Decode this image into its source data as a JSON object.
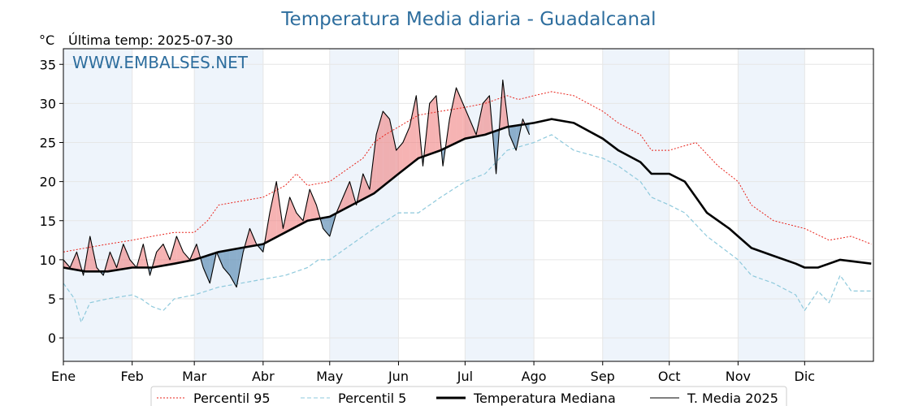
{
  "header": {
    "title": "Temperatura Media diaria - Guadalcanal",
    "unit": "°C",
    "last_temp": "Última temp: 2025-07-30",
    "watermark": "WWW.EMBALSES.NET"
  },
  "colors": {
    "title": "#2e6e9e",
    "p95": "#e8231b",
    "p5": "#8ec9dc",
    "median": "#000000",
    "current": "#000000",
    "above_fill": "#f08080",
    "below_fill": "#4a7fac",
    "month_band": "#eef4fb"
  },
  "chart_data": {
    "type": "line",
    "title": "Temperatura Media diaria - Guadalcanal",
    "ylabel": "°C",
    "xlabel": "",
    "xlim": [
      0,
      365
    ],
    "ylim": [
      -3,
      37
    ],
    "yticks": [
      0,
      5,
      10,
      15,
      20,
      25,
      30,
      35
    ],
    "month_labels": [
      "Ene",
      "Feb",
      "Mar",
      "Abr",
      "May",
      "Jun",
      "Jul",
      "Ago",
      "Sep",
      "Oct",
      "Nov",
      "Dic"
    ],
    "month_start_days": [
      0,
      31,
      59,
      90,
      120,
      151,
      181,
      212,
      243,
      273,
      304,
      334
    ],
    "grid": true,
    "legend_position": "bottom",
    "series": [
      {
        "name": "Percentil 95",
        "style": "red-dotted",
        "x": [
          0,
          10,
          20,
          31,
          40,
          50,
          59,
          65,
          70,
          80,
          90,
          100,
          105,
          110,
          120,
          130,
          135,
          140,
          145,
          151,
          160,
          170,
          181,
          190,
          200,
          205,
          212,
          220,
          230,
          243,
          250,
          260,
          265,
          273,
          285,
          295,
          304,
          310,
          320,
          334,
          345,
          355,
          364
        ],
        "y": [
          11,
          11.5,
          12,
          12.5,
          13,
          13.5,
          13.5,
          15,
          17,
          17.5,
          18,
          19.5,
          21,
          19.5,
          20,
          22,
          23,
          25,
          26,
          27,
          28.5,
          29,
          29.5,
          30,
          31,
          30.5,
          31,
          31.5,
          31,
          29,
          27.5,
          26,
          24,
          24,
          25,
          22,
          20,
          17,
          15,
          14,
          12.5,
          13,
          12
        ]
      },
      {
        "name": "Percentil 5",
        "style": "lightblue-dashed",
        "x": [
          0,
          5,
          8,
          12,
          20,
          31,
          35,
          40,
          45,
          50,
          59,
          70,
          80,
          90,
          100,
          110,
          115,
          120,
          130,
          140,
          151,
          160,
          170,
          181,
          190,
          200,
          212,
          220,
          230,
          243,
          250,
          260,
          265,
          273,
          280,
          290,
          304,
          310,
          320,
          330,
          334,
          340,
          345,
          350,
          355,
          364
        ],
        "y": [
          7,
          5,
          2,
          4.5,
          5,
          5.5,
          5,
          4,
          3.5,
          5,
          5.5,
          6.5,
          7,
          7.5,
          8,
          9,
          10,
          10,
          12,
          14,
          16,
          16,
          18,
          20,
          21,
          24,
          25,
          26,
          24,
          23,
          22,
          20,
          18,
          17,
          16,
          13,
          10,
          8,
          7,
          5.5,
          3.5,
          6,
          4.5,
          8,
          6,
          6
        ]
      },
      {
        "name": "Temperatura Mediana",
        "style": "black-thick",
        "x": [
          0,
          10,
          20,
          31,
          40,
          50,
          59,
          70,
          80,
          90,
          100,
          110,
          120,
          130,
          140,
          151,
          160,
          170,
          181,
          190,
          200,
          212,
          220,
          230,
          243,
          250,
          260,
          265,
          273,
          280,
          285,
          290,
          300,
          304,
          310,
          320,
          330,
          334,
          340,
          350,
          364
        ],
        "y": [
          9,
          8.5,
          8.5,
          9,
          9,
          9.5,
          10,
          11,
          11.5,
          12,
          13.5,
          15,
          15.5,
          17,
          18.5,
          21,
          23,
          24,
          25.5,
          26,
          27,
          27.5,
          28,
          27.5,
          25.5,
          24,
          22.5,
          21,
          21,
          20,
          18,
          16,
          14,
          13,
          11.5,
          10.5,
          9.5,
          9,
          9,
          10,
          9.5
        ]
      },
      {
        "name": "T. Media 2025",
        "style": "black-thin",
        "x": [
          0,
          3,
          6,
          9,
          12,
          15,
          18,
          21,
          24,
          27,
          30,
          33,
          36,
          39,
          42,
          45,
          48,
          51,
          54,
          57,
          60,
          63,
          66,
          69,
          72,
          75,
          78,
          81,
          84,
          87,
          90,
          93,
          96,
          99,
          102,
          105,
          108,
          111,
          114,
          117,
          120,
          123,
          126,
          129,
          132,
          135,
          138,
          141,
          144,
          147,
          150,
          153,
          156,
          159,
          162,
          165,
          168,
          171,
          174,
          177,
          180,
          183,
          186,
          189,
          192,
          195,
          198,
          201,
          204,
          207,
          210
        ],
        "y": [
          10,
          9,
          11,
          8,
          13,
          9,
          8,
          11,
          9,
          12,
          10,
          9,
          12,
          8,
          11,
          12,
          10,
          13,
          11,
          10,
          12,
          9,
          7,
          11,
          9,
          8,
          6.5,
          11,
          14,
          12,
          11,
          16,
          20,
          14,
          18,
          16,
          15,
          19,
          17,
          14,
          13,
          16,
          18,
          20,
          17,
          21,
          19,
          26,
          29,
          28,
          24,
          25,
          27,
          31,
          22,
          30,
          31,
          22,
          28,
          32,
          30,
          28,
          26,
          30,
          31,
          21,
          33,
          26,
          24,
          28,
          26
        ]
      }
    ]
  },
  "legend": {
    "items": [
      {
        "label": "Percentil 95"
      },
      {
        "label": "Percentil 5"
      },
      {
        "label": "Temperatura Mediana"
      },
      {
        "label": "T. Media 2025"
      }
    ]
  }
}
